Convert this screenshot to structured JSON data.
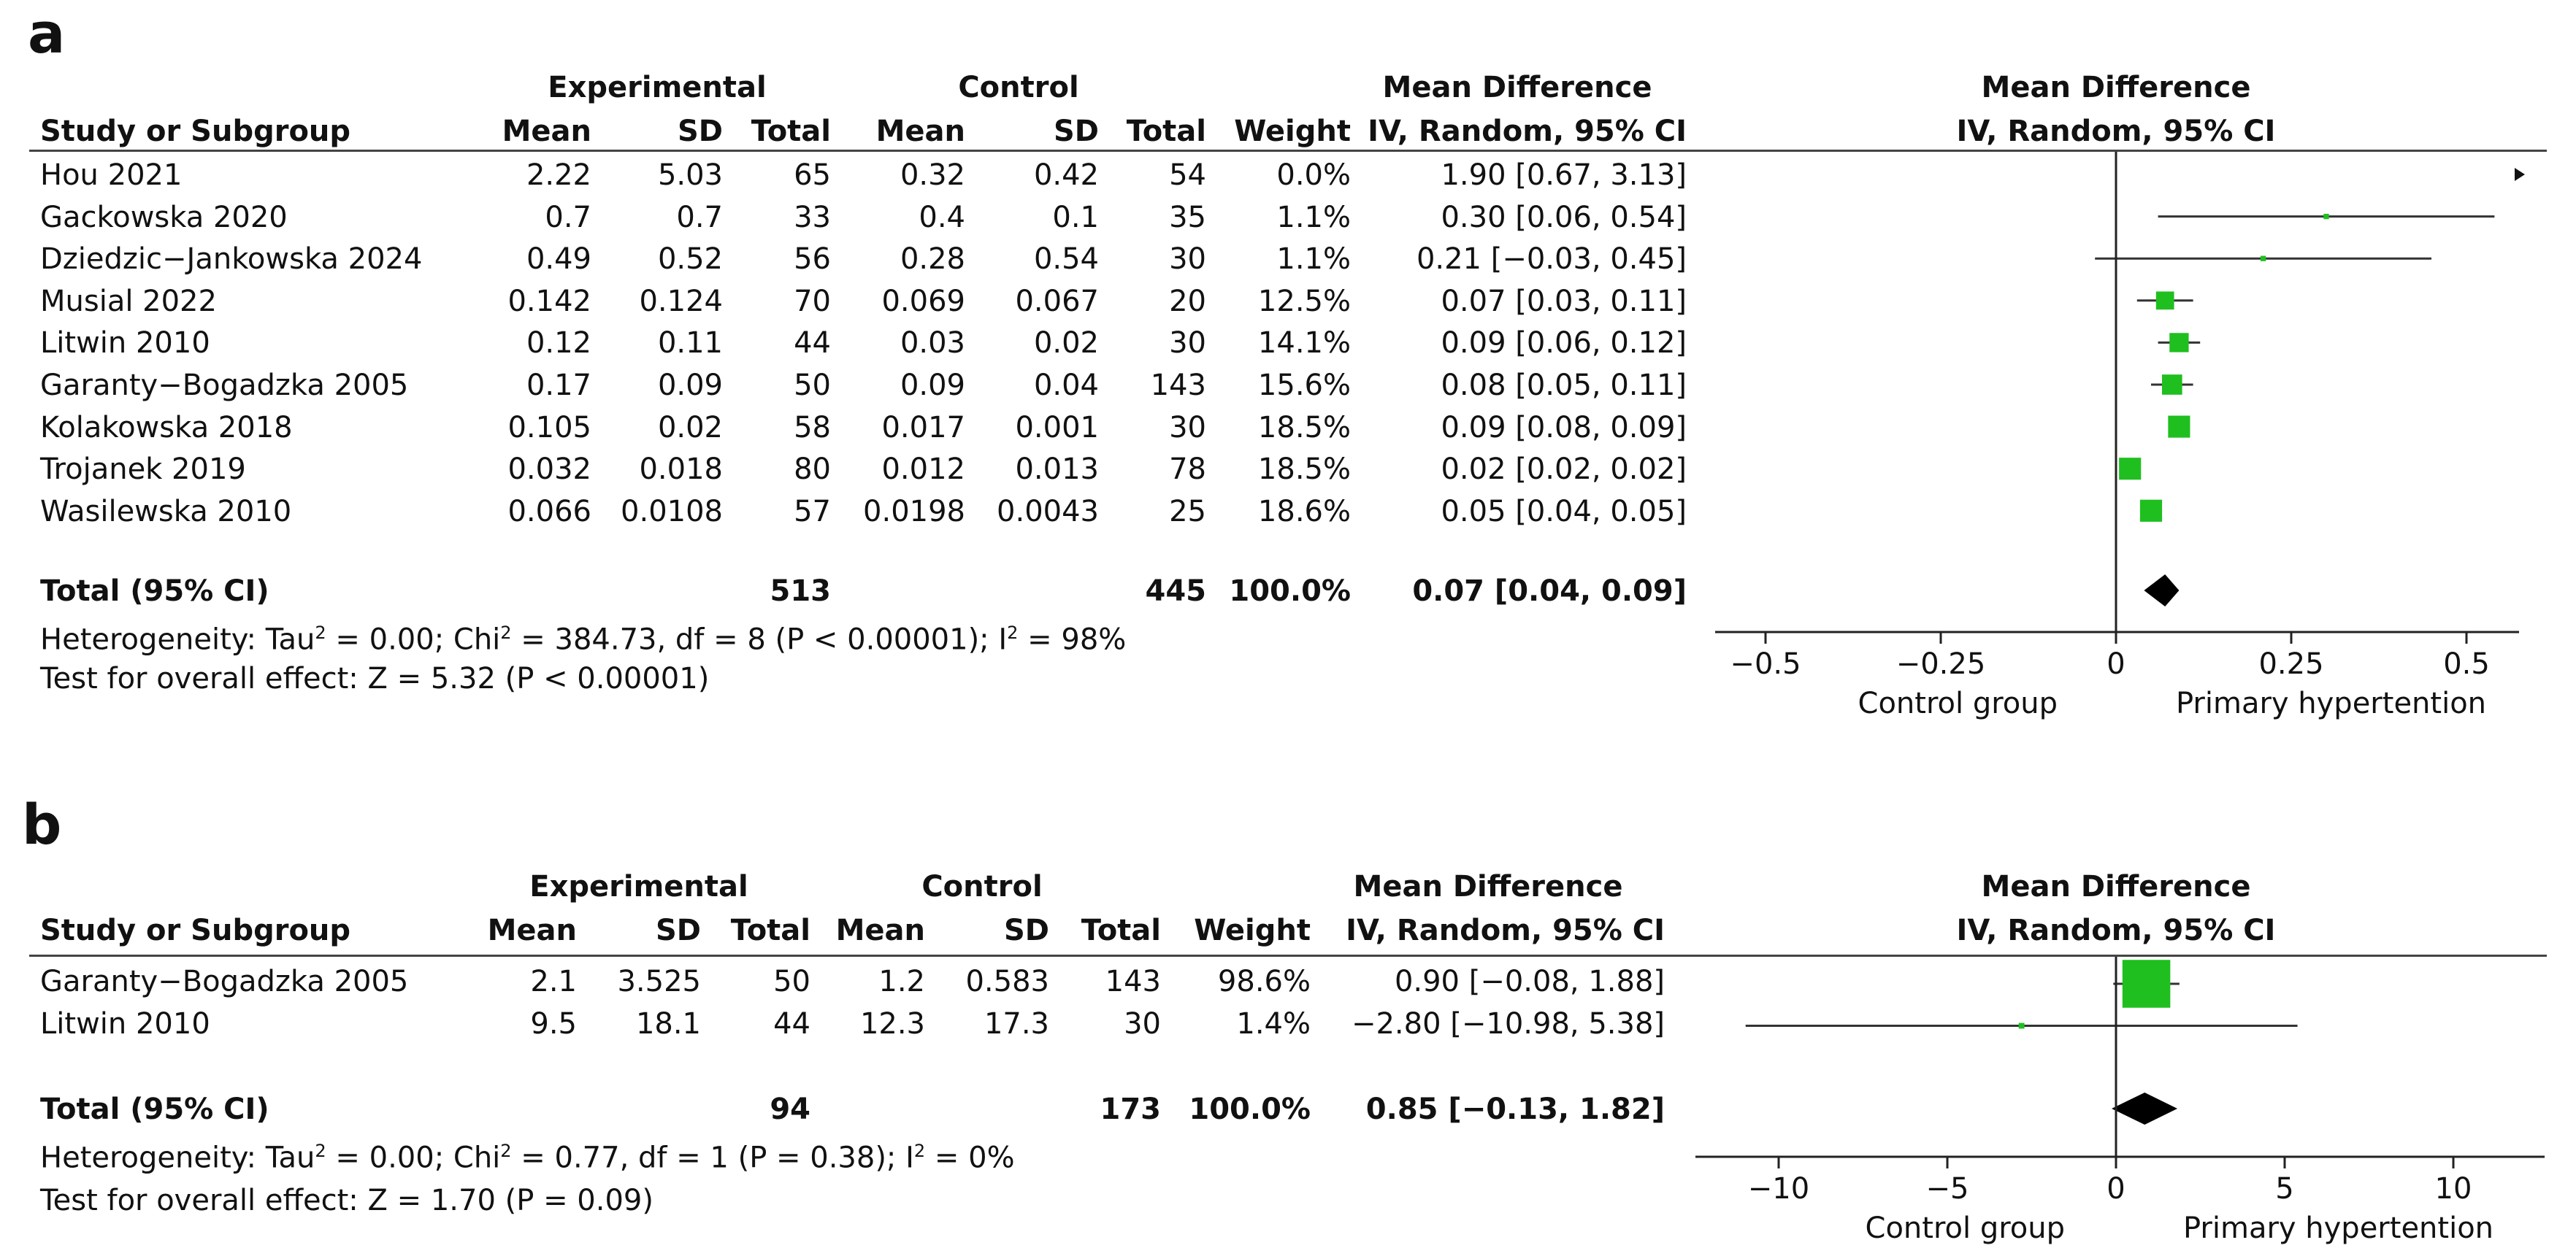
{
  "colors": {
    "square": "#1fbf1f",
    "diamond": "#000000",
    "line": "#333333"
  },
  "chart_data": [
    {
      "label": "a",
      "type": "forest",
      "headers": {
        "study": "Study or Subgroup",
        "exp_group": "Experimental",
        "ctrl_group": "Control",
        "mean": "Mean",
        "sd": "SD",
        "total": "Total",
        "weight": "Weight",
        "md_title": "Mean Difference",
        "md_method": "IV, Random, 95% CI",
        "plot_title": "Mean Difference",
        "plot_method": "IV, Random, 95% CI"
      },
      "studies": [
        {
          "name": "Hou 2021",
          "e_mean": "2.22",
          "e_sd": "5.03",
          "e_total": "65",
          "c_mean": "0.32",
          "c_sd": "0.42",
          "c_total": "54",
          "weight": "0.0%",
          "ci": "1.90 [0.67, 3.13]",
          "md": 1.9,
          "lo": 0.67,
          "hi": 3.13,
          "w": 0.0
        },
        {
          "name": "Gackowska 2020",
          "e_mean": "0.7",
          "e_sd": "0.7",
          "e_total": "33",
          "c_mean": "0.4",
          "c_sd": "0.1",
          "c_total": "35",
          "weight": "1.1%",
          "ci": "0.30 [0.06, 0.54]",
          "md": 0.3,
          "lo": 0.06,
          "hi": 0.54,
          "w": 1.1
        },
        {
          "name": "Dziedzic−Jankowska 2024",
          "e_mean": "0.49",
          "e_sd": "0.52",
          "e_total": "56",
          "c_mean": "0.28",
          "c_sd": "0.54",
          "c_total": "30",
          "weight": "1.1%",
          "ci": "0.21 [−0.03, 0.45]",
          "md": 0.21,
          "lo": -0.03,
          "hi": 0.45,
          "w": 1.1
        },
        {
          "name": "Musial 2022",
          "e_mean": "0.142",
          "e_sd": "0.124",
          "e_total": "70",
          "c_mean": "0.069",
          "c_sd": "0.067",
          "c_total": "20",
          "weight": "12.5%",
          "ci": "0.07 [0.03, 0.11]",
          "md": 0.07,
          "lo": 0.03,
          "hi": 0.11,
          "w": 12.5
        },
        {
          "name": "Litwin 2010",
          "e_mean": "0.12",
          "e_sd": "0.11",
          "e_total": "44",
          "c_mean": "0.03",
          "c_sd": "0.02",
          "c_total": "30",
          "weight": "14.1%",
          "ci": "0.09 [0.06, 0.12]",
          "md": 0.09,
          "lo": 0.06,
          "hi": 0.12,
          "w": 14.1
        },
        {
          "name": "Garanty−Bogadzka 2005",
          "e_mean": "0.17",
          "e_sd": "0.09",
          "e_total": "50",
          "c_mean": "0.09",
          "c_sd": "0.04",
          "c_total": "143",
          "weight": "15.6%",
          "ci": "0.08 [0.05, 0.11]",
          "md": 0.08,
          "lo": 0.05,
          "hi": 0.11,
          "w": 15.6
        },
        {
          "name": "Kolakowska 2018",
          "e_mean": "0.105",
          "e_sd": "0.02",
          "e_total": "58",
          "c_mean": "0.017",
          "c_sd": "0.001",
          "c_total": "30",
          "weight": "18.5%",
          "ci": "0.09 [0.08, 0.09]",
          "md": 0.09,
          "lo": 0.08,
          "hi": 0.09,
          "w": 18.5
        },
        {
          "name": "Trojanek 2019",
          "e_mean": "0.032",
          "e_sd": "0.018",
          "e_total": "80",
          "c_mean": "0.012",
          "c_sd": "0.013",
          "c_total": "78",
          "weight": "18.5%",
          "ci": "0.02 [0.02, 0.02]",
          "md": 0.02,
          "lo": 0.02,
          "hi": 0.02,
          "w": 18.5
        },
        {
          "name": "Wasilewska 2010",
          "e_mean": "0.066",
          "e_sd": "0.0108",
          "e_total": "57",
          "c_mean": "0.0198",
          "c_sd": "0.0043",
          "c_total": "25",
          "weight": "18.6%",
          "ci": "0.05 [0.04, 0.05]",
          "md": 0.05,
          "lo": 0.04,
          "hi": 0.05,
          "w": 18.6
        }
      ],
      "total": {
        "name": "Total (95% CI)",
        "e_total": "513",
        "c_total": "445",
        "weight": "100.0%",
        "ci": "0.07 [0.04, 0.09]",
        "md": 0.07,
        "lo": 0.04,
        "hi": 0.09
      },
      "heterogeneity": {
        "prefix": "Heterogeneity: Tau",
        "sup1": "2",
        "mid1": " = 0.00; Chi",
        "sup2": "2",
        "mid2": " = 384.73, df = 8 (P < 0.00001); I",
        "sup3": "2",
        "end": " = 98%"
      },
      "overall": "Test for overall effect: Z = 5.32 (P < 0.00001)",
      "axis": {
        "ticks": [
          -0.5,
          -0.25,
          0,
          0.25,
          0.5
        ],
        "tick_labels": [
          "−0.5",
          "−0.25",
          "0",
          "0.25",
          "0.5"
        ],
        "xlim": [
          -0.6,
          0.6
        ]
      },
      "favours_left": "Control group",
      "favours_right": "Primary hypertention"
    },
    {
      "label": "b",
      "type": "forest",
      "headers": {
        "study": "Study or Subgroup",
        "exp_group": "Experimental",
        "ctrl_group": "Control",
        "mean": "Mean",
        "sd": "SD",
        "total": "Total",
        "weight": "Weight",
        "md_title": "Mean Difference",
        "md_method": "IV, Random, 95% CI",
        "plot_title": "Mean Difference",
        "plot_method": "IV, Random, 95% CI"
      },
      "studies": [
        {
          "name": "Garanty−Bogadzka 2005",
          "e_mean": "2.1",
          "e_sd": "3.525",
          "e_total": "50",
          "c_mean": "1.2",
          "c_sd": "0.583",
          "c_total": "143",
          "weight": "98.6%",
          "ci": "0.90 [−0.08, 1.88]",
          "md": 0.9,
          "lo": -0.08,
          "hi": 1.88,
          "w": 98.6
        },
        {
          "name": "Litwin 2010",
          "e_mean": "9.5",
          "e_sd": "18.1",
          "e_total": "44",
          "c_mean": "12.3",
          "c_sd": "17.3",
          "c_total": "30",
          "weight": "1.4%",
          "ci": "−2.80 [−10.98, 5.38]",
          "md": -2.8,
          "lo": -10.98,
          "hi": 5.38,
          "w": 1.4
        }
      ],
      "total": {
        "name": "Total (95% CI)",
        "e_total": "94",
        "c_total": "173",
        "weight": "100.0%",
        "ci": "0.85 [−0.13, 1.82]",
        "md": 0.85,
        "lo": -0.13,
        "hi": 1.82
      },
      "heterogeneity": {
        "prefix": "Heterogeneity: Tau",
        "sup1": "2",
        "mid1": " = 0.00; Chi",
        "sup2": "2",
        "mid2": " = 0.77, df = 1 (P = 0.38); I",
        "sup3": "2",
        "end": " = 0%"
      },
      "overall": "Test for overall effect: Z = 1.70 (P = 0.09)",
      "axis": {
        "ticks": [
          -10,
          -5,
          0,
          5,
          10
        ],
        "tick_labels": [
          "−10",
          "−5",
          "0",
          "5",
          "10"
        ],
        "xlim": [
          -12.5,
          12.5
        ]
      },
      "favours_left": "Control group",
      "favours_right": "Primary hypertention"
    }
  ]
}
